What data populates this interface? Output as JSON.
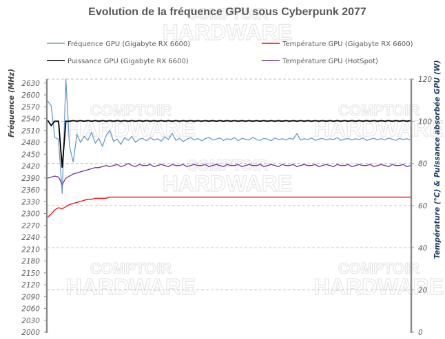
{
  "chart_data": {
    "type": "line",
    "title": "Evolution de la fréquence GPU sous Cyberpunk 2077",
    "watermark": "Le COMPTOIR du HARDWARE",
    "ylabel_left": "Fréquence (MHz)",
    "ylabel_right": "Température (°C) & Puissance absorbée GPU (W)",
    "ylim_left": [
      2000,
      2640
    ],
    "ylim_right": [
      0,
      120
    ],
    "yticks_left": [
      2000,
      2030,
      2060,
      2090,
      2120,
      2150,
      2180,
      2210,
      2240,
      2270,
      2300,
      2330,
      2360,
      2390,
      2420,
      2450,
      2480,
      2510,
      2540,
      2570,
      2600,
      2630
    ],
    "yticks_right": [
      0,
      20,
      40,
      60,
      80,
      100,
      120
    ],
    "grid": "horizontal dashed at right-axis ticks",
    "legend_placement": "top",
    "series": [
      {
        "name": "Fréquence GPU (Gigabyte RX 6600)",
        "axis": "left",
        "color": "#6699cc",
        "values": [
          2585,
          2572,
          2492,
          2488,
          2350,
          2640,
          2470,
          2430,
          2500,
          2480,
          2495,
          2485,
          2505,
          2478,
          2490,
          2470,
          2498,
          2510,
          2482,
          2488,
          2475,
          2492,
          2485,
          2495,
          2480,
          2488,
          2490,
          2484,
          2492,
          2486,
          2489,
          2483,
          2494,
          2487,
          2503,
          2485,
          2490,
          2482,
          2488,
          2492,
          2486,
          2490,
          2484,
          2489,
          2493,
          2486,
          2488,
          2491,
          2485,
          2489,
          2487,
          2492,
          2484,
          2490,
          2488,
          2486,
          2493,
          2487,
          2485,
          2490,
          2488,
          2484,
          2491,
          2487,
          2489,
          2486,
          2490,
          2488,
          2502,
          2486,
          2489,
          2487,
          2491,
          2485,
          2488,
          2490,
          2486,
          2489,
          2487,
          2492,
          2485,
          2488,
          2490,
          2486,
          2489,
          2487,
          2491,
          2485,
          2488,
          2490,
          2487,
          2489,
          2486,
          2491,
          2488,
          2485,
          2490,
          2487,
          2489,
          2486
        ]
      },
      {
        "name": "Température GPU (Gigabyte RX 6600)",
        "axis": "right",
        "color": "#ff0000",
        "values": [
          54.5,
          56,
          58,
          59,
          58.5,
          59.5,
          60.5,
          61,
          61.5,
          62,
          62.5,
          63,
          63,
          63.5,
          63.5,
          63.5,
          63.5,
          64,
          64,
          64,
          64,
          64,
          64,
          64,
          64,
          64,
          64,
          64,
          64,
          64,
          64,
          64,
          64,
          64,
          64,
          64,
          64,
          64,
          64,
          64,
          64,
          64,
          64,
          64,
          64,
          64,
          64,
          64,
          64,
          64,
          64,
          64,
          64,
          64,
          64,
          64,
          64,
          64,
          64,
          64,
          64,
          64,
          64,
          64,
          64,
          64,
          64,
          64,
          64,
          64,
          64,
          64,
          64,
          64,
          64,
          64,
          64,
          64,
          64,
          64,
          64,
          64,
          64,
          64,
          64,
          64,
          64,
          64,
          64,
          64,
          64,
          64,
          64,
          64,
          64,
          64,
          64,
          64,
          64,
          64
        ]
      },
      {
        "name": "Puissance GPU (Gigabyte RX 6600)",
        "axis": "right",
        "color": "#000000",
        "values": [
          100.5,
          98,
          100,
          100,
          78,
          100,
          100,
          100.3,
          100,
          100.3,
          100,
          100.3,
          100,
          100.3,
          100,
          100.3,
          100,
          100.3,
          100,
          100.3,
          100,
          100.3,
          100,
          100.3,
          100,
          100.3,
          100,
          100.3,
          100,
          100.3,
          100,
          100.3,
          100,
          100.3,
          100,
          100.3,
          100,
          100.3,
          100,
          100.3,
          100,
          100.3,
          100,
          100.3,
          100,
          100.3,
          100,
          100.3,
          100,
          100.3,
          100,
          100.3,
          100,
          100.3,
          100,
          100.3,
          100,
          100.3,
          100,
          100.3,
          100,
          100.3,
          100,
          100.3,
          100,
          100.3,
          100,
          100.3,
          100,
          100.3,
          100,
          100.3,
          100,
          100.3,
          100,
          100.3,
          100,
          100.3,
          100,
          100.3,
          100,
          100.3,
          100,
          100.3,
          100,
          100.3,
          100,
          100.3,
          100,
          100.3,
          100,
          100.3,
          100,
          100.3,
          100,
          100.3,
          100,
          100.3,
          100,
          100.3
        ]
      },
      {
        "name": "Température GPU (HotSpot)",
        "axis": "right",
        "color": "#7030a0",
        "values": [
          73,
          73.5,
          74,
          73.5,
          70,
          73,
          74,
          75,
          75.5,
          76,
          76.5,
          77,
          77.5,
          78,
          78,
          78.5,
          79,
          78.5,
          79,
          79.5,
          78.5,
          79,
          80,
          79,
          78.5,
          79.5,
          79,
          79,
          79.5,
          78.5,
          79,
          79.5,
          79,
          78.5,
          79.5,
          79,
          79,
          79.5,
          78.5,
          79,
          79.5,
          79,
          79,
          79.5,
          78.5,
          79,
          79.5,
          79,
          78.5,
          79.5,
          79,
          79,
          79.5,
          78.5,
          79,
          79.5,
          79,
          79,
          79.5,
          78.5,
          79,
          79.5,
          79,
          78.5,
          79.5,
          79,
          79,
          79.5,
          78.5,
          79,
          79.5,
          79,
          79,
          79.5,
          78.5,
          79,
          79.5,
          79,
          78.5,
          79.5,
          79,
          79,
          79.5,
          78.5,
          79,
          79.5,
          79,
          79,
          79.5,
          78.5,
          79,
          79.5,
          79,
          78.5,
          79.5,
          79,
          79,
          79.5,
          78.5,
          79
        ]
      }
    ]
  }
}
